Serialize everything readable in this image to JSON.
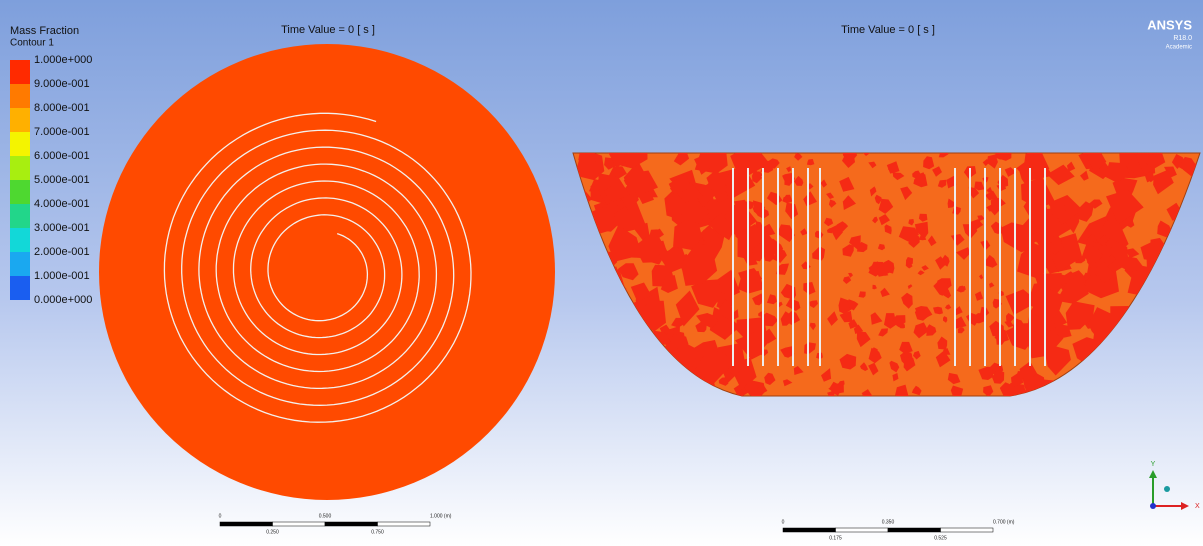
{
  "legend": {
    "title": "Mass Fraction",
    "subtitle": "Contour 1",
    "labels": [
      "1.000e+000",
      "9.000e-001",
      "8.000e-001",
      "7.000e-001",
      "6.000e-001",
      "5.000e-001",
      "4.000e-001",
      "3.000e-001",
      "2.000e-001",
      "1.000e-001",
      "0.000e+000"
    ]
  },
  "views": [
    {
      "time_label": "Time Value = 0 [ s ]",
      "scale": {
        "top": [
          "0",
          "0.500",
          "1.000 (m)"
        ],
        "bottom": [
          "0.250",
          "0.750"
        ]
      }
    },
    {
      "time_label": "Time Value = 0 [ s ]",
      "scale": {
        "top": [
          "0",
          "0.350",
          "0.700 (m)"
        ],
        "bottom": [
          "0.175",
          "0.525"
        ]
      }
    }
  ],
  "logo": {
    "name": "ANSYS",
    "version": "R18.0",
    "license": "Academic"
  },
  "triad": {
    "y": "Y",
    "x": "X"
  }
}
